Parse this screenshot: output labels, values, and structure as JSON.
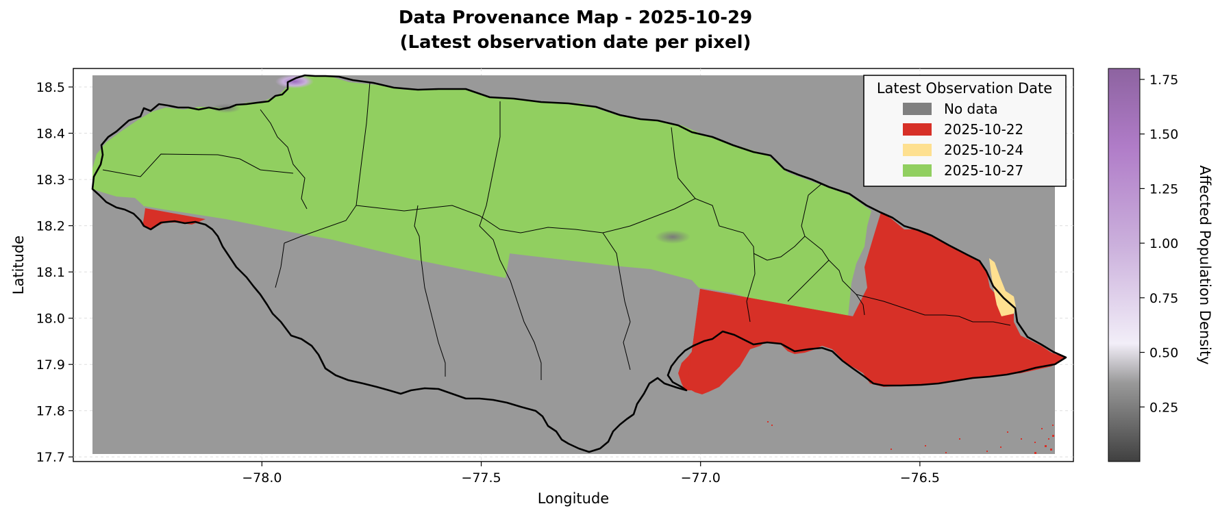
{
  "title": {
    "line1": "Data Provenance Map - 2025-10-29",
    "line2": "(Latest observation date per pixel)"
  },
  "axes": {
    "xlabel": "Longitude",
    "ylabel": "Latitude",
    "xlim": [
      -78.43,
      -76.15
    ],
    "ylim": [
      17.69,
      18.54
    ],
    "xticks": [
      -78.0,
      -77.5,
      -77.0,
      -76.5
    ],
    "xtick_labels": [
      "−78.0",
      "−77.5",
      "−77.0",
      "−76.5"
    ],
    "yticks": [
      17.7,
      17.8,
      17.9,
      18.0,
      18.1,
      18.2,
      18.3,
      18.4,
      18.5
    ],
    "ytick_labels": [
      "17.7",
      "17.8",
      "17.9",
      "18.0",
      "18.1",
      "18.2",
      "18.3",
      "18.4",
      "18.5"
    ],
    "grid": true,
    "grid_style": "faint dashed"
  },
  "legend": {
    "title": "Latest Observation Date",
    "placement": "top-right",
    "entries": [
      {
        "label": "No data",
        "color": "#808080"
      },
      {
        "label": "2025-10-22",
        "color": "#d73027"
      },
      {
        "label": "2025-10-24",
        "color": "#fee090"
      },
      {
        "label": "2025-10-27",
        "color": "#91cf60"
      }
    ]
  },
  "colorbar": {
    "label": "Affected Population Density",
    "min": 0.0,
    "max": 1.8,
    "ticks": [
      0.25,
      0.5,
      0.75,
      1.0,
      1.25,
      1.5,
      1.75
    ],
    "tick_labels": [
      "0.25",
      "0.50",
      "0.75",
      "1.00",
      "1.25",
      "1.50",
      "1.75"
    ],
    "colormap_stops": [
      "#404040",
      "#999999",
      "#f2eef8",
      "#cbb0dc",
      "#b07cc8",
      "#8d63a0"
    ]
  },
  "colors": {
    "no_data": "#999999",
    "date_2025_10_22": "#d73027",
    "date_2025_10_24": "#fee090",
    "date_2025_10_27": "#91cf60",
    "coastline": "#000000"
  },
  "chart_data": {
    "type": "map",
    "region": "Jamaica",
    "categories": [
      "No data",
      "2025-10-22",
      "2025-10-24",
      "2025-10-27"
    ],
    "regions_by_latest_date": [
      {
        "label": "2025-10-27",
        "description_lon_range": [
          -78.37,
          -76.62
        ],
        "description_lat_range": [
          18.01,
          18.53
        ]
      },
      {
        "label": "2025-10-22",
        "description_lon_range": [
          -77.03,
          -76.19
        ],
        "description_lat_range": [
          17.85,
          18.23
        ]
      },
      {
        "label": "2025-10-24",
        "description_lon_range": [
          -76.3,
          -76.25
        ],
        "description_lat_range": [
          17.98,
          18.16
        ]
      },
      {
        "label": "No data",
        "description_lon_range": [
          -78.39,
          -76.19
        ],
        "description_lat_range": [
          17.7,
          18.52
        ]
      }
    ]
  }
}
